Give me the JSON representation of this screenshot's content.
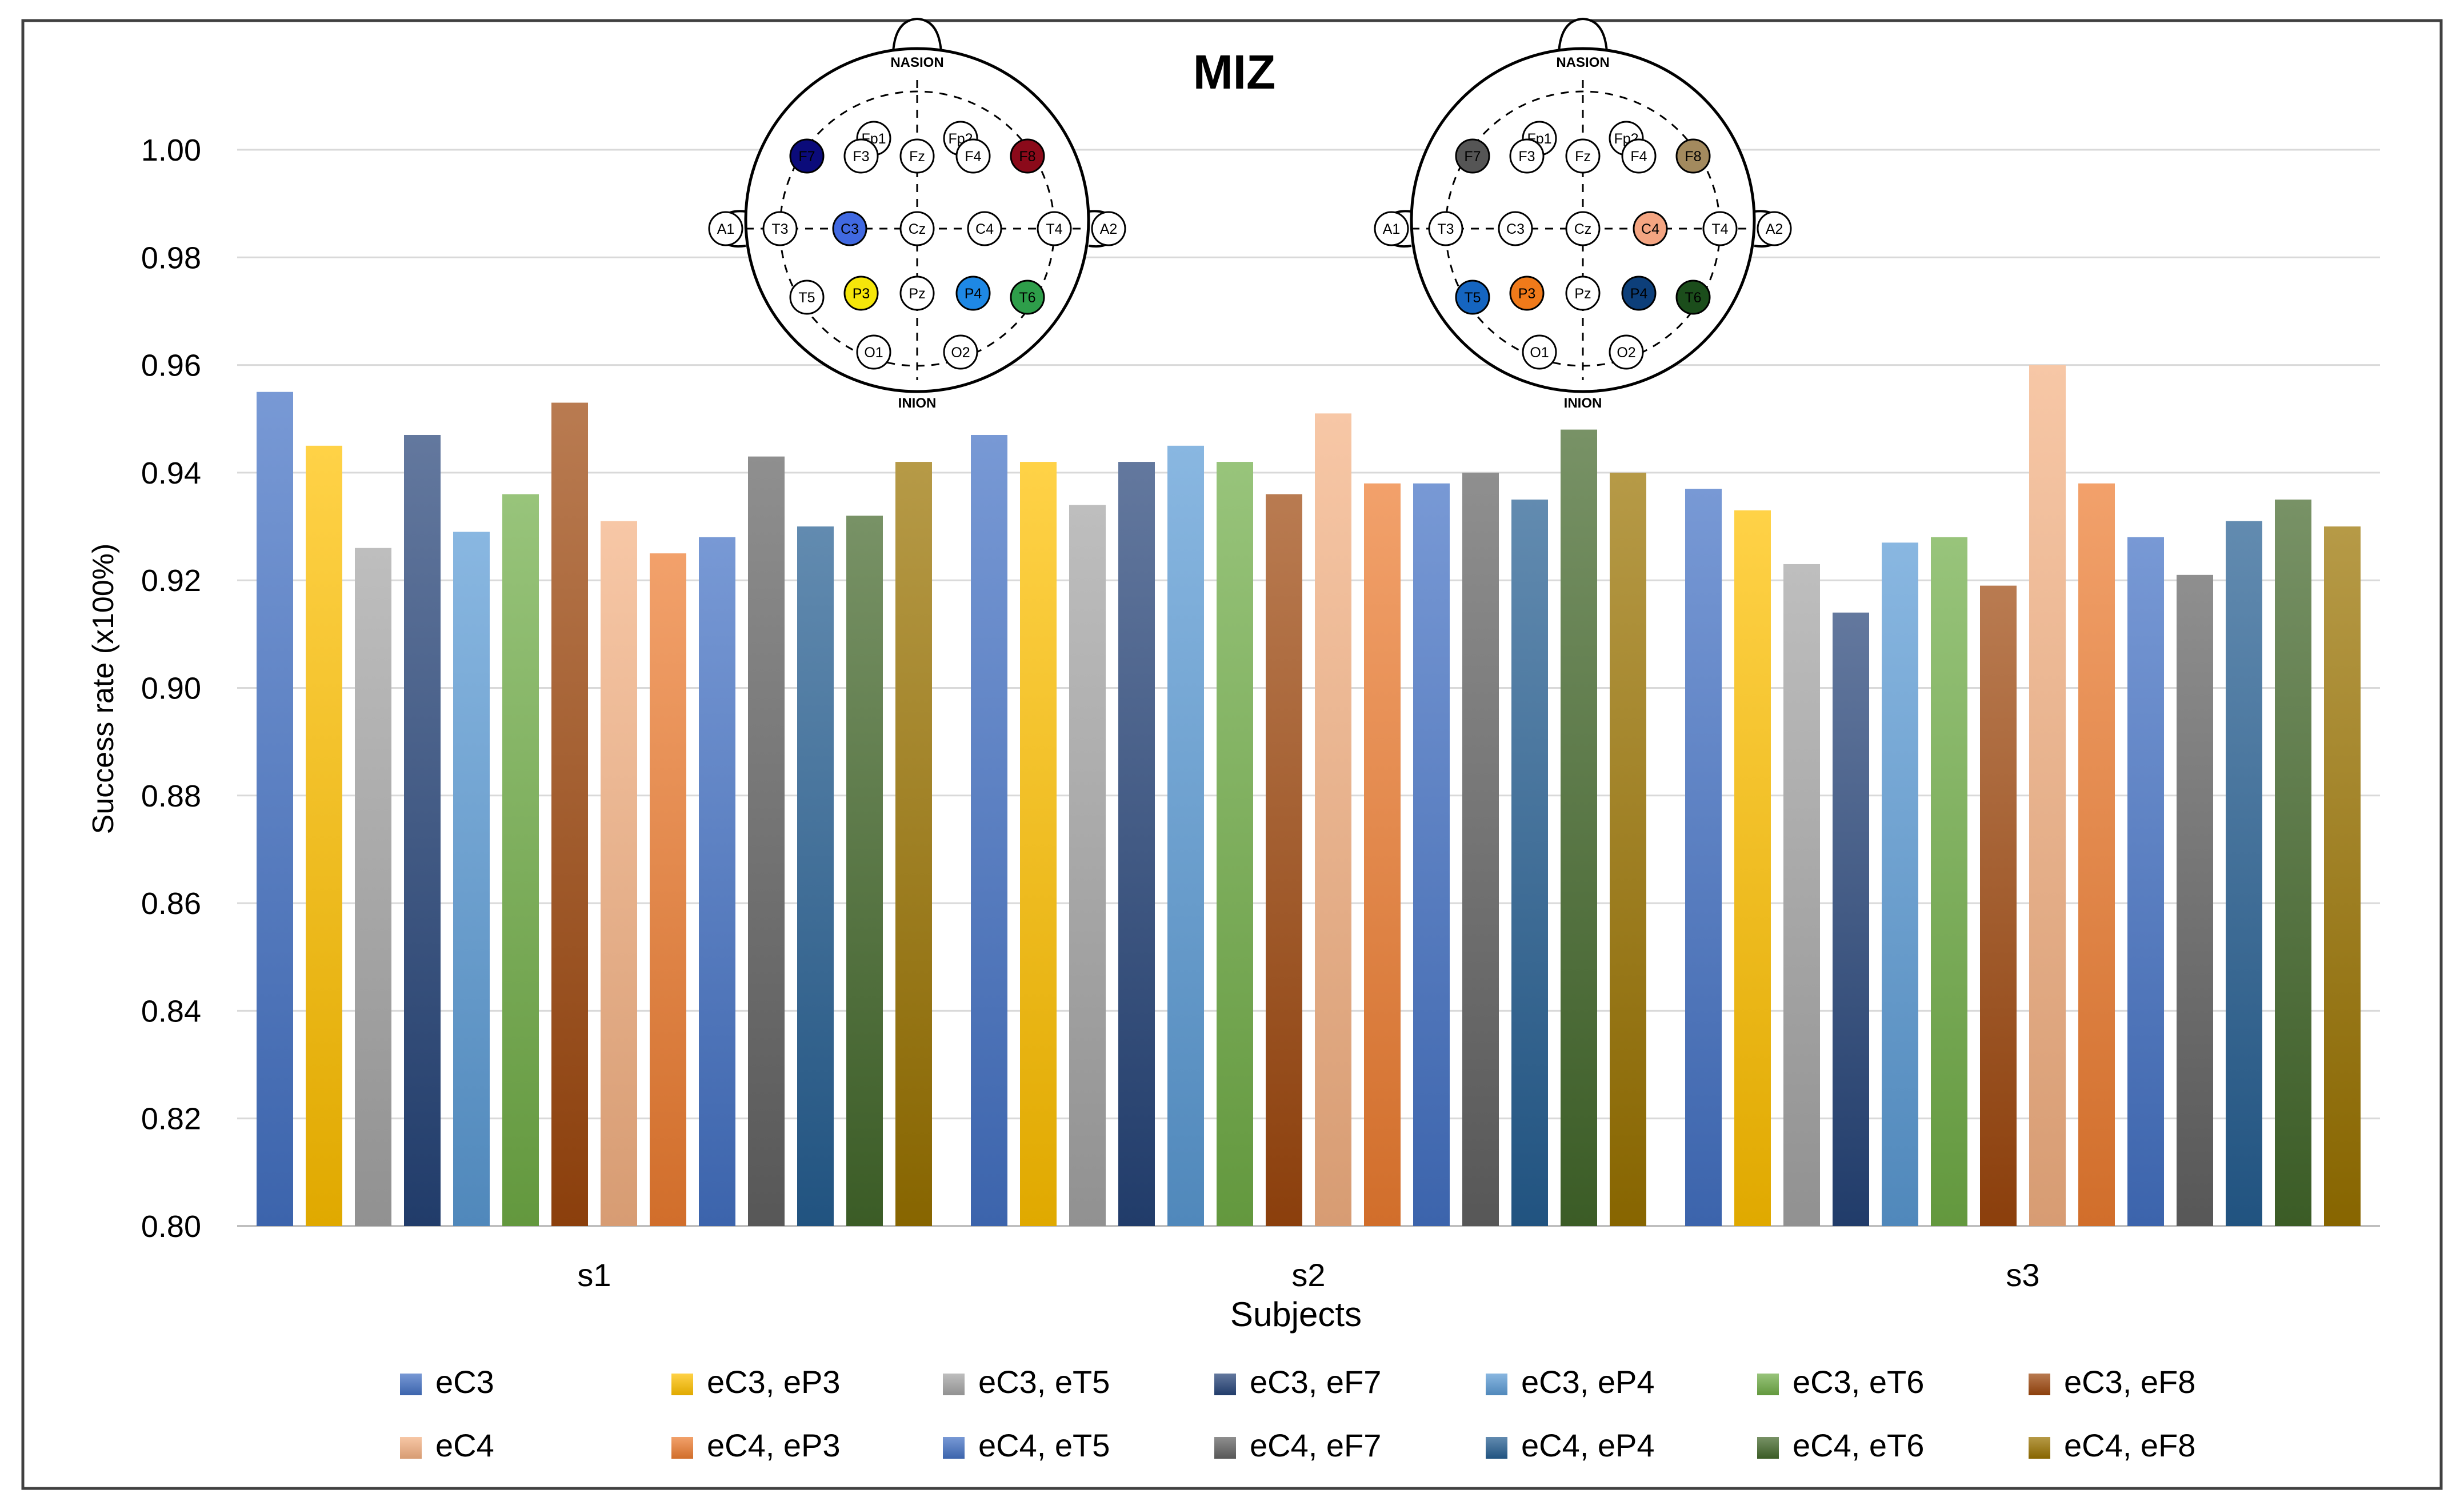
{
  "chart_data": {
    "type": "bar",
    "title": "MIZ",
    "xlabel": "Subjects",
    "ylabel": "Success rate (x100%)",
    "ylim": [
      0.8,
      1.0
    ],
    "yticks": [
      0.8,
      0.82,
      0.84,
      0.86,
      0.88,
      0.9,
      0.92,
      0.94,
      0.96,
      0.98,
      1.0
    ],
    "categories": [
      "s1",
      "s2",
      "s3"
    ],
    "gridlines": true,
    "legend_position": "bottom",
    "series": [
      {
        "name": "eC3",
        "color": "#4472C4",
        "values": [
          0.955,
          0.947,
          0.937
        ]
      },
      {
        "name": "eC3, eP3",
        "color": "#FFC000",
        "values": [
          0.945,
          0.942,
          0.933
        ]
      },
      {
        "name": "eC3, eT5",
        "color": "#A5A5A5",
        "values": [
          0.926,
          0.934,
          0.923
        ]
      },
      {
        "name": "eC3, eF7",
        "color": "#264478",
        "values": [
          0.947,
          0.942,
          0.914
        ]
      },
      {
        "name": "eC3, eP4",
        "color": "#5B9BD5",
        "values": [
          0.929,
          0.945,
          0.927
        ]
      },
      {
        "name": "eC3, eT6",
        "color": "#70AD47",
        "values": [
          0.936,
          0.942,
          0.928
        ]
      },
      {
        "name": "eC3, eF8",
        "color": "#9E480E",
        "values": [
          0.953,
          0.936,
          0.919
        ]
      },
      {
        "name": "eC4",
        "color": "#F4B183",
        "values": [
          0.931,
          0.951,
          0.96
        ]
      },
      {
        "name": "eC4, eP3",
        "color": "#ED7D31",
        "values": [
          0.925,
          0.938,
          0.938
        ]
      },
      {
        "name": "eC4, eT5",
        "color": "#4472C4",
        "values": [
          0.928,
          0.938,
          0.928
        ]
      },
      {
        "name": "eC4, eF7",
        "color": "#636363",
        "values": [
          0.943,
          0.94,
          0.921
        ]
      },
      {
        "name": "eC4, eP4",
        "color": "#255E91",
        "values": [
          0.93,
          0.935,
          0.931
        ]
      },
      {
        "name": "eC4, eT6",
        "color": "#43682B",
        "values": [
          0.932,
          0.948,
          0.935
        ]
      },
      {
        "name": "eC4, eF8",
        "color": "#997300",
        "values": [
          0.942,
          0.94,
          0.93
        ]
      }
    ],
    "annotations": {
      "left_head": {
        "top_label": "NASION",
        "bottom_label": "INION",
        "electrodes": [
          {
            "label": "Fp1",
            "color": "#ffffff"
          },
          {
            "label": "Fp2",
            "color": "#ffffff"
          },
          {
            "label": "F7",
            "color": "#0b0b7a"
          },
          {
            "label": "F3",
            "color": "#ffffff"
          },
          {
            "label": "Fz",
            "color": "#ffffff"
          },
          {
            "label": "F4",
            "color": "#ffffff"
          },
          {
            "label": "F8",
            "color": "#8b0a1a"
          },
          {
            "label": "A1",
            "color": "#ffffff"
          },
          {
            "label": "T3",
            "color": "#ffffff"
          },
          {
            "label": "C3",
            "color": "#4169e1"
          },
          {
            "label": "Cz",
            "color": "#ffffff"
          },
          {
            "label": "C4",
            "color": "#ffffff"
          },
          {
            "label": "T4",
            "color": "#ffffff"
          },
          {
            "label": "A2",
            "color": "#ffffff"
          },
          {
            "label": "T5",
            "color": "#ffffff"
          },
          {
            "label": "P3",
            "color": "#f5e60a"
          },
          {
            "label": "Pz",
            "color": "#ffffff"
          },
          {
            "label": "P4",
            "color": "#1e88e5"
          },
          {
            "label": "T6",
            "color": "#2e9e4a"
          },
          {
            "label": "O1",
            "color": "#ffffff"
          },
          {
            "label": "O2",
            "color": "#ffffff"
          }
        ]
      },
      "right_head": {
        "top_label": "NASION",
        "bottom_label": "INION",
        "electrodes": [
          {
            "label": "Fp1",
            "color": "#ffffff"
          },
          {
            "label": "Fp2",
            "color": "#ffffff"
          },
          {
            "label": "F7",
            "color": "#555555"
          },
          {
            "label": "F3",
            "color": "#ffffff"
          },
          {
            "label": "Fz",
            "color": "#ffffff"
          },
          {
            "label": "F4",
            "color": "#ffffff"
          },
          {
            "label": "F8",
            "color": "#a38a5e"
          },
          {
            "label": "A1",
            "color": "#ffffff"
          },
          {
            "label": "T3",
            "color": "#ffffff"
          },
          {
            "label": "C3",
            "color": "#ffffff"
          },
          {
            "label": "Cz",
            "color": "#ffffff"
          },
          {
            "label": "C4",
            "color": "#f4a582"
          },
          {
            "label": "T4",
            "color": "#ffffff"
          },
          {
            "label": "A2",
            "color": "#ffffff"
          },
          {
            "label": "T5",
            "color": "#1565c0"
          },
          {
            "label": "P3",
            "color": "#f07a1a"
          },
          {
            "label": "Pz",
            "color": "#ffffff"
          },
          {
            "label": "P4",
            "color": "#0d3f7a"
          },
          {
            "label": "T6",
            "color": "#1b4d1b"
          },
          {
            "label": "O1",
            "color": "#ffffff"
          },
          {
            "label": "O2",
            "color": "#ffffff"
          }
        ]
      }
    }
  }
}
